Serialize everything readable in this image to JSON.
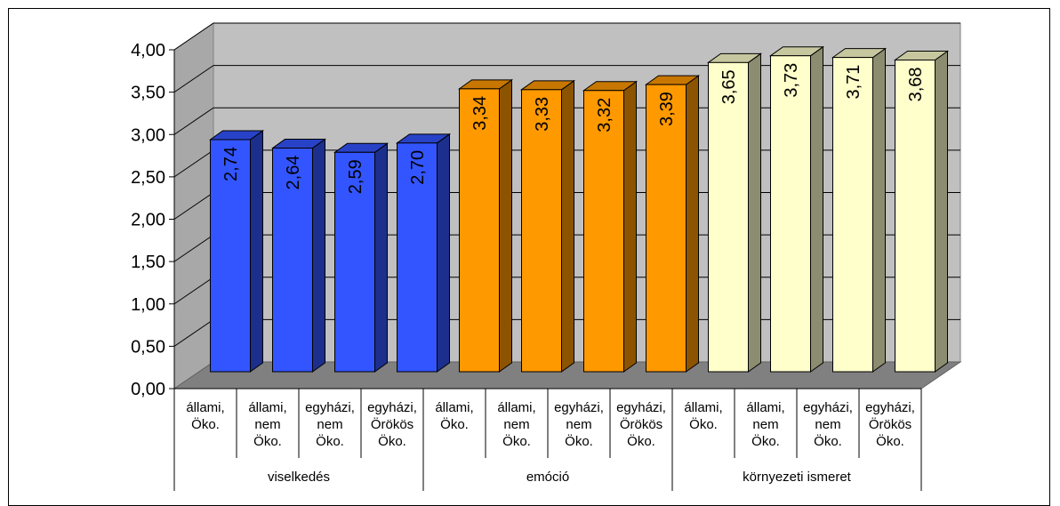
{
  "chart_data": {
    "type": "bar",
    "style": "3d-clustered-column",
    "ylim": [
      0,
      4
    ],
    "yticks": [
      "0,00",
      "0,50",
      "1,00",
      "1,50",
      "2,00",
      "2,50",
      "3,00",
      "3,50",
      "4,00"
    ],
    "grid": true,
    "groups": [
      {
        "label": "viselkedés",
        "color": "#3355ff",
        "categories": [
          [
            "állami,",
            "Öko."
          ],
          [
            "állami,",
            "nem",
            "Öko."
          ],
          [
            "egyházi,",
            "nem",
            "Öko."
          ],
          [
            "egyházi,",
            "Örökös",
            "Öko."
          ]
        ],
        "values": [
          2.74,
          2.64,
          2.59,
          2.7
        ],
        "labels": [
          "2,74",
          "2,64",
          "2,59",
          "2,70"
        ]
      },
      {
        "label": "emóció",
        "color": "#ff9900",
        "categories": [
          [
            "állami,",
            "Öko."
          ],
          [
            "állami,",
            "nem",
            "Öko."
          ],
          [
            "egyházi,",
            "nem",
            "Öko."
          ],
          [
            "egyházi,",
            "Örökös",
            "Öko."
          ]
        ],
        "values": [
          3.34,
          3.33,
          3.32,
          3.39
        ],
        "labels": [
          "3,34",
          "3,33",
          "3,32",
          "3,39"
        ]
      },
      {
        "label": "környezeti ismeret",
        "color": "#ffffcc",
        "categories": [
          [
            "állami,",
            "Öko."
          ],
          [
            "állami,",
            "nem",
            "Öko."
          ],
          [
            "egyházi,",
            "nem",
            "Öko."
          ],
          [
            "egyházi,",
            "Örökös",
            "Öko."
          ]
        ],
        "values": [
          3.65,
          3.73,
          3.71,
          3.68
        ],
        "labels": [
          "3,65",
          "3,73",
          "3,71",
          "3,68"
        ]
      }
    ]
  }
}
